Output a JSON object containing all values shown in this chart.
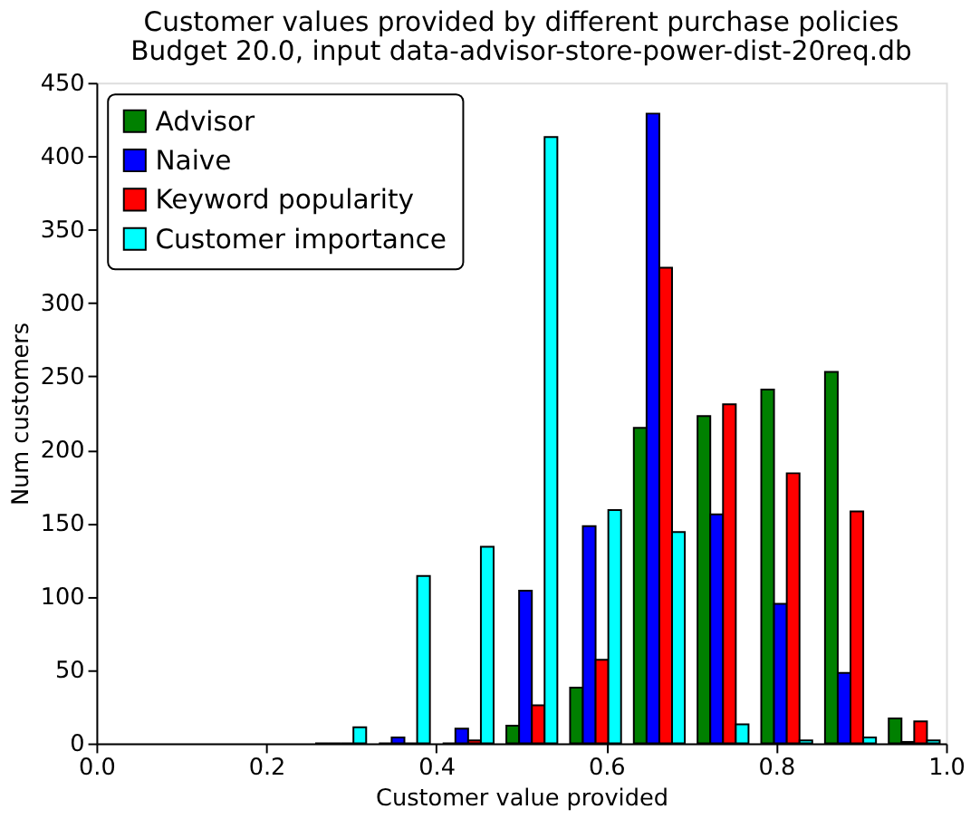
{
  "chart_data": {
    "type": "histogram",
    "title": "Customer values provided by different purchase policies",
    "subtitle": "Budget 20.0, input data-advisor-store-power-dist-20req.db",
    "xlabel": "Customer value provided",
    "ylabel": "Num customers",
    "bins": [
      0.25,
      0.325,
      0.4,
      0.475,
      0.55,
      0.625,
      0.7,
      0.775,
      0.85,
      0.925,
      1.0
    ],
    "series": [
      {
        "name": "Advisor",
        "color": "#008000",
        "values": [
          0,
          0,
          0,
          12,
          38,
          215,
          223,
          241,
          253,
          17
        ]
      },
      {
        "name": "Naive",
        "color": "#0000ff",
        "values": [
          0,
          4,
          10,
          104,
          148,
          429,
          156,
          95,
          48,
          1
        ]
      },
      {
        "name": "Keyword popularity",
        "color": "#ff0000",
        "values": [
          0,
          0,
          2,
          26,
          57,
          324,
          231,
          184,
          158,
          15
        ]
      },
      {
        "name": "Customer importance",
        "color": "#00ffff",
        "values": [
          11,
          114,
          134,
          413,
          159,
          144,
          13,
          2,
          4,
          2
        ]
      }
    ],
    "xlim": [
      0,
      1
    ],
    "xticks": [
      {
        "value": 0,
        "label": "0.0"
      },
      {
        "value": 0.2,
        "label": "0.2"
      },
      {
        "value": 0.4,
        "label": "0.4"
      },
      {
        "value": 0.6,
        "label": "0.6"
      },
      {
        "value": 0.8,
        "label": "0.8"
      },
      {
        "value": 1,
        "label": "1.0"
      }
    ],
    "ylim": [
      0,
      450
    ],
    "yticks": [
      0,
      50,
      100,
      150,
      200,
      250,
      300,
      350,
      400,
      450
    ],
    "grid": false,
    "legend": "top left"
  }
}
